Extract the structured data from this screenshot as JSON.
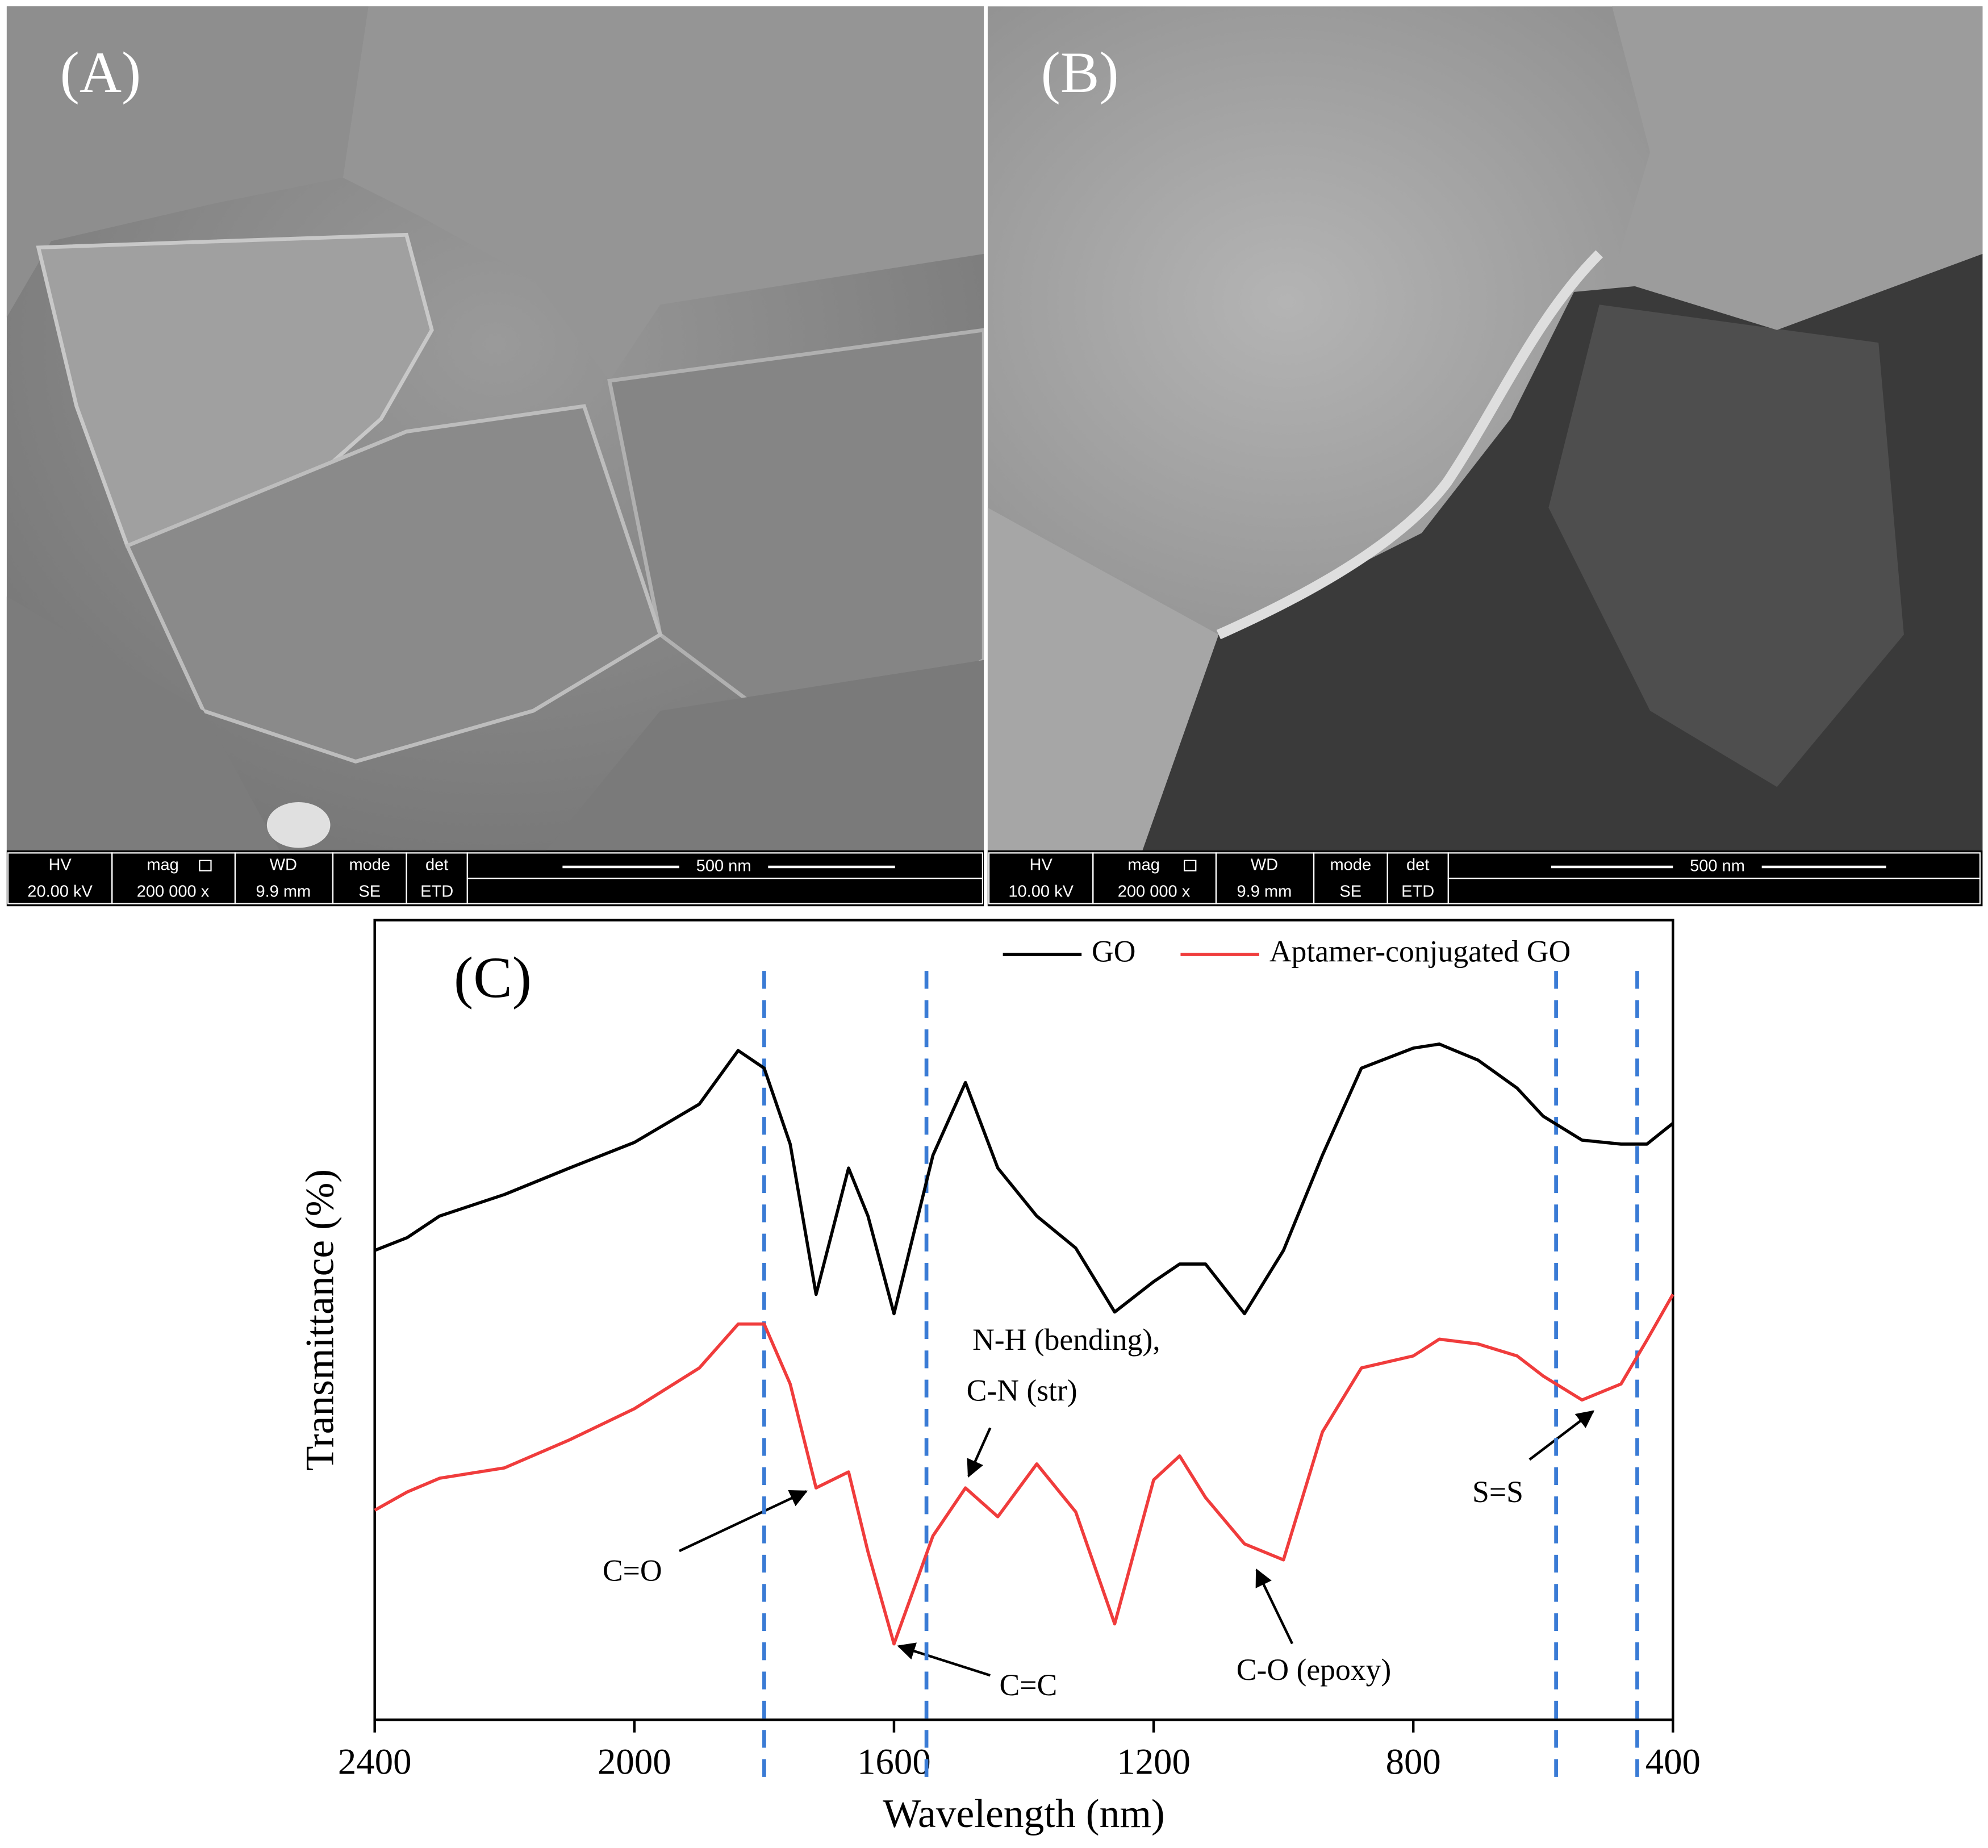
{
  "panels": [
    {
      "label": "(A)",
      "headers": [
        "HV",
        "mag",
        "WD",
        "mode",
        "det"
      ],
      "values": [
        "20.00 kV",
        "200 000 x",
        "9.9 mm",
        "SE",
        "ETD"
      ],
      "scale": "500 nm"
    },
    {
      "label": "(B)",
      "headers": [
        "HV",
        "mag",
        "WD",
        "mode",
        "det"
      ],
      "values": [
        "10.00 kV",
        "200 000 x",
        "9.9 mm",
        "SE",
        "ETD"
      ],
      "scale": "500 nm"
    }
  ],
  "chart_data": {
    "type": "line",
    "label": "(C)",
    "x_label": "Wavelength (nm)",
    "y_label": "Transmittance (%)",
    "x": [
      2400,
      2350,
      2300,
      2200,
      2100,
      2000,
      1900,
      1840,
      1800,
      1760,
      1720,
      1670,
      1640,
      1600,
      1540,
      1490,
      1440,
      1380,
      1320,
      1260,
      1200,
      1160,
      1120,
      1060,
      1000,
      940,
      880,
      800,
      760,
      700,
      640,
      600,
      540,
      480,
      440,
      400
    ],
    "series": [
      {
        "name": "GO",
        "color": "#000000",
        "values": [
          58.7,
          60.3,
          63.0,
          65.7,
          69,
          72.2,
          77,
          83.7,
          81.5,
          72,
          53.2,
          69,
          63,
          50.8,
          70.6,
          79.7,
          69,
          63,
          59,
          51,
          54.8,
          57,
          57,
          50.8,
          58.7,
          70.6,
          81.5,
          84,
          84.5,
          82.5,
          79,
          75.5,
          72.5,
          72,
          72,
          74.6
        ]
      },
      {
        "name": "Aptamer-conjugated GO",
        "color": "#f03c3c",
        "values": [
          26.2,
          28.5,
          30.2,
          31.5,
          35,
          38.9,
          44,
          49.5,
          49.5,
          42,
          29,
          31,
          21,
          9.5,
          23,
          29,
          25.4,
          32,
          26,
          12,
          30,
          33,
          27.8,
          22,
          20,
          36,
          44,
          45.5,
          47.6,
          47,
          45.5,
          43,
          40,
          42,
          47.5,
          53.2
        ]
      }
    ],
    "xlim": [
      2400,
      400
    ],
    "xticks": [
      2400,
      2000,
      1600,
      1200,
      800,
      400
    ],
    "ylim": [
      0,
      100
    ],
    "reference_lines": [
      1800,
      1550,
      580,
      455
    ],
    "reference_color": "#3a7bd5",
    "annotations": [
      "C=O",
      "C=C",
      "N-H (bending),",
      "C-N (str)",
      "C-O (epoxy)",
      "S=S"
    ],
    "legend": "top-right"
  }
}
